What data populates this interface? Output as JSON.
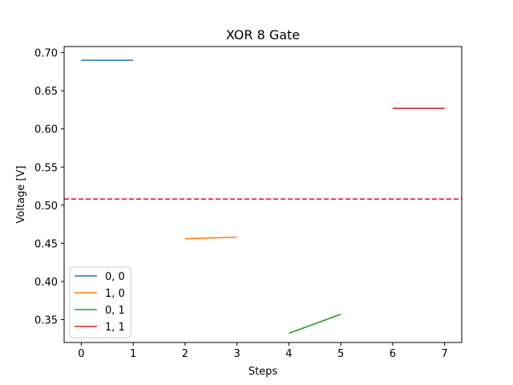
{
  "chart_data": {
    "type": "line",
    "title": "XOR 8 Gate",
    "xlabel": "Steps",
    "ylabel": "Voltage [V]",
    "xlim": [
      -0.33,
      7.33
    ],
    "ylim": [
      0.32,
      0.708
    ],
    "xticks": [
      0,
      1,
      2,
      3,
      4,
      5,
      6,
      7
    ],
    "yticks": [
      0.35,
      0.4,
      0.45,
      0.5,
      0.55,
      0.6,
      0.65,
      0.7
    ],
    "ytick_labels": [
      "0.35",
      "0.40",
      "0.45",
      "0.50",
      "0.55",
      "0.60",
      "0.65",
      "0.70"
    ],
    "grid": false,
    "legend_position": "lower-left",
    "series": [
      {
        "name": "0, 0",
        "color": "#1f77b4",
        "x": [
          0,
          1
        ],
        "y": [
          0.69,
          0.69
        ]
      },
      {
        "name": "1, 0",
        "color": "#ff7f0e",
        "x": [
          2,
          3
        ],
        "y": [
          0.456,
          0.458
        ]
      },
      {
        "name": "0, 1",
        "color": "#2ca02c",
        "x": [
          4,
          5
        ],
        "y": [
          0.332,
          0.357
        ]
      },
      {
        "name": "1, 1",
        "color": "#d62728",
        "x": [
          6,
          7
        ],
        "y": [
          0.627,
          0.627
        ]
      }
    ],
    "threshold": {
      "y": 0.508,
      "color": "#d62728",
      "style": "dashed"
    }
  }
}
